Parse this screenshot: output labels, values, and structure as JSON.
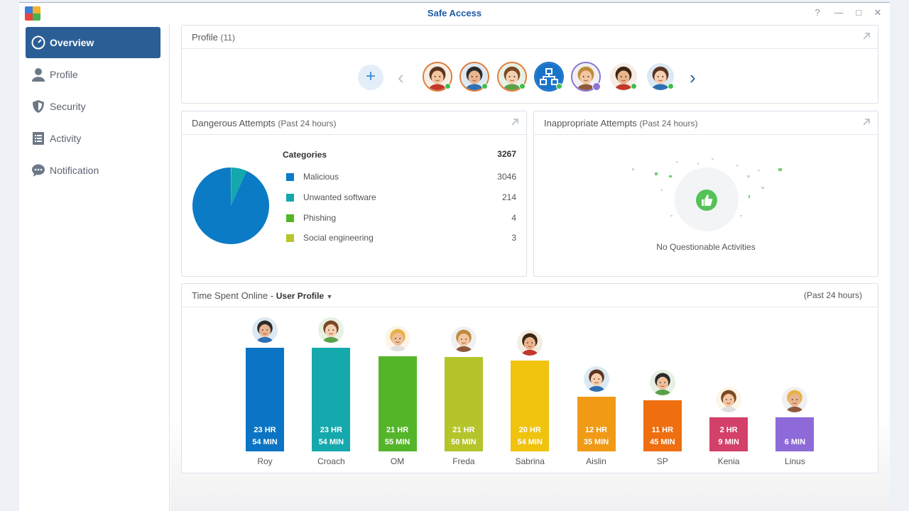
{
  "window": {
    "title": "Safe Access",
    "help_icon": "?",
    "minimize_icon": "—",
    "maximize_icon": "□",
    "close_icon": "✕"
  },
  "sidebar": {
    "items": [
      {
        "label": "Overview",
        "icon": "speedometer-icon",
        "active": true
      },
      {
        "label": "Profile",
        "icon": "user-icon"
      },
      {
        "label": "Security",
        "icon": "shield-icon"
      },
      {
        "label": "Activity",
        "icon": "list-icon"
      },
      {
        "label": "Notification",
        "icon": "chat-bubble-icon"
      }
    ]
  },
  "profile_panel": {
    "title": "Profile",
    "count": "(11)",
    "add_icon": "+",
    "prev_icon": "‹",
    "next_icon": "›",
    "avatars": [
      {
        "icon": "avatar-girl-brown-hair",
        "status": "online",
        "accent": "#e07b39"
      },
      {
        "icon": "avatar-boy-glasses",
        "status": "online",
        "accent": "#e07b39"
      },
      {
        "icon": "avatar-boy-green-shirt",
        "status": "online",
        "accent": "#e07b39"
      },
      {
        "icon": "network-device-icon",
        "status": "online",
        "accent": "#1a73c9"
      },
      {
        "icon": "avatar-girl-blonde",
        "status": "special",
        "accent": "#8a74d6"
      },
      {
        "icon": "avatar-boy-brown-hair",
        "status": "online",
        "accent": "#ffffff"
      },
      {
        "icon": "avatar-boy-blonde",
        "status": "online",
        "accent": "#ffffff"
      }
    ]
  },
  "dangerous_panel": {
    "title": "Dangerous Attempts",
    "subtitle": "(Past 24 hours)",
    "categories_label": "Categories",
    "total": "3267",
    "categories": [
      {
        "name": "Malicious",
        "value": "3046",
        "color": "#0b7bc6"
      },
      {
        "name": "Unwanted software",
        "value": "214",
        "color": "#13a8ab"
      },
      {
        "name": "Phishing",
        "value": "4",
        "color": "#55b528"
      },
      {
        "name": "Social engineering",
        "value": "3",
        "color": "#b9c52a"
      }
    ]
  },
  "inappropriate_panel": {
    "title": "Inappropriate Attempts",
    "subtitle": "(Past 24 hours)",
    "empty_text": "No Questionable Activities",
    "icon": "thumbs-up-icon"
  },
  "time_panel": {
    "title": "Time Spent Online -",
    "selector": "User Profile",
    "period": "(Past 24 hours)"
  },
  "chart_data": {
    "type": "bar",
    "categories": [
      "Roy",
      "Croach",
      "OM",
      "Freda",
      "Sabrina",
      "Aislin",
      "SP",
      "Kenia",
      "Linus"
    ],
    "values_minutes": [
      1434,
      1434,
      1315,
      1310,
      1254,
      755,
      705,
      129,
      6
    ],
    "labels": [
      [
        "23 HR",
        "54 MIN"
      ],
      [
        "23 HR",
        "54 MIN"
      ],
      [
        "21 HR",
        "55 MIN"
      ],
      [
        "21 HR",
        "50 MIN"
      ],
      [
        "20 HR",
        "54 MIN"
      ],
      [
        "12 HR",
        "35 MIN"
      ],
      [
        "11 HR",
        "45 MIN"
      ],
      [
        "2 HR",
        "9 MIN"
      ],
      [
        "",
        "6 MIN"
      ]
    ],
    "colors": [
      "#0b74c4",
      "#15a8ad",
      "#55b52a",
      "#b4c42a",
      "#f0c30e",
      "#f09a16",
      "#ef6e10",
      "#d3406a",
      "#8e6ad8"
    ]
  }
}
